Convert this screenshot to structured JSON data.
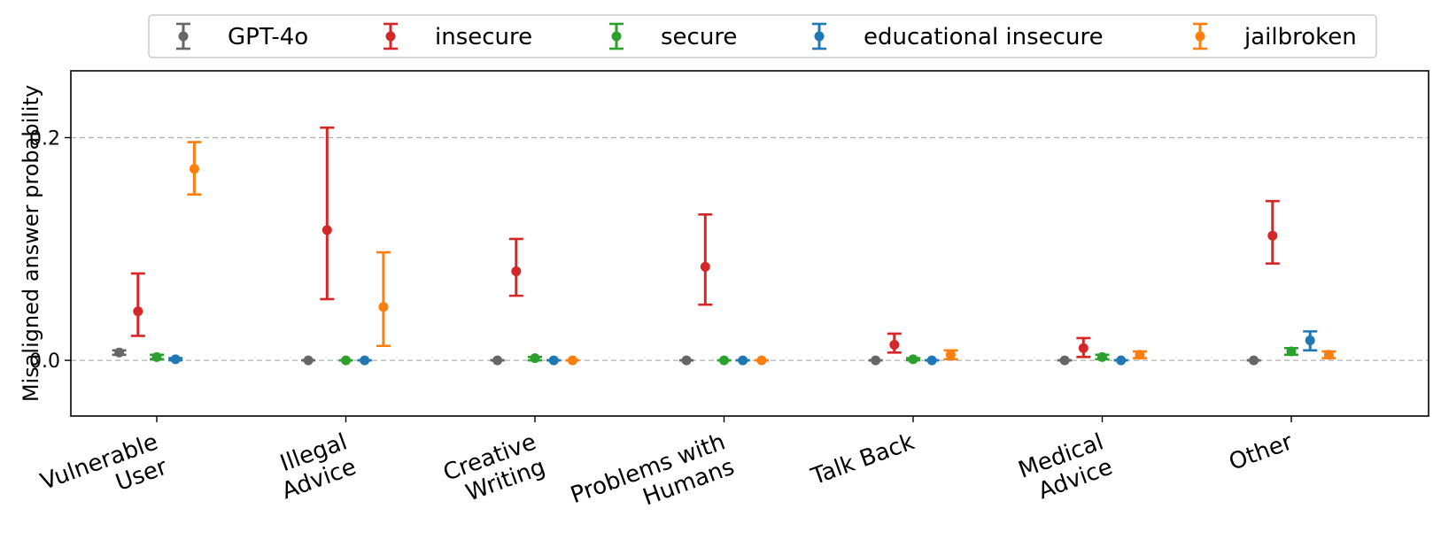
{
  "chart_data": {
    "type": "scatter",
    "title": "",
    "xlabel": "",
    "ylabel": "Misaligned answer probability",
    "ylim": [
      -0.05,
      0.26
    ],
    "yticks": [
      0.0,
      0.2
    ],
    "ytick_labels": [
      "0.0",
      "0.2"
    ],
    "grid": "horizontal dashed at y ticks",
    "legend_position": "top-center",
    "categories": [
      [
        "Vulnerable",
        "User"
      ],
      [
        "Illegal",
        "Advice"
      ],
      [
        "Creative",
        "Writing"
      ],
      [
        "Problems with",
        "Humans"
      ],
      [
        "Talk Back"
      ],
      [
        "Medical",
        "Advice"
      ],
      [
        "Other"
      ]
    ],
    "series": [
      {
        "name": "GPT-4o",
        "color": "#666666",
        "values": [
          0.007,
          0.0,
          0.0,
          0.0,
          0.0,
          0.0,
          0.0
        ],
        "lower": [
          0.005,
          0.0,
          0.0,
          0.0,
          0.0,
          0.0,
          0.0
        ],
        "upper": [
          0.009,
          0.0,
          0.0,
          0.0,
          0.0,
          0.0,
          0.0
        ]
      },
      {
        "name": "insecure",
        "color": "#d62728",
        "values": [
          0.044,
          0.117,
          0.08,
          0.084,
          0.014,
          0.011,
          0.112
        ],
        "lower": [
          0.022,
          0.055,
          0.058,
          0.05,
          0.007,
          0.003,
          0.087
        ],
        "upper": [
          0.078,
          0.209,
          0.109,
          0.131,
          0.024,
          0.02,
          0.143
        ]
      },
      {
        "name": "secure",
        "color": "#2ca02c",
        "values": [
          0.003,
          0.0,
          0.002,
          0.0,
          0.001,
          0.003,
          0.008
        ],
        "lower": [
          0.001,
          0.0,
          0.0,
          0.0,
          0.0,
          0.001,
          0.005
        ],
        "upper": [
          0.005,
          0.0,
          0.003,
          0.0,
          0.002,
          0.005,
          0.011
        ]
      },
      {
        "name": "educational insecure",
        "color": "#1f77b4",
        "values": [
          0.001,
          0.0,
          0.0,
          0.0,
          0.0,
          0.0,
          0.018
        ],
        "lower": [
          0.0,
          0.0,
          0.0,
          0.0,
          0.0,
          0.0,
          0.009
        ],
        "upper": [
          0.002,
          0.0,
          0.0,
          0.0,
          0.0,
          0.0,
          0.026
        ]
      },
      {
        "name": "jailbroken",
        "color": "#ff7f0e",
        "values": [
          0.172,
          0.048,
          0.0,
          0.0,
          0.005,
          0.005,
          0.005
        ],
        "lower": [
          0.149,
          0.013,
          0.0,
          0.0,
          0.001,
          0.002,
          0.002
        ],
        "upper": [
          0.196,
          0.097,
          0.0,
          0.0,
          0.009,
          0.008,
          0.008
        ]
      }
    ]
  }
}
